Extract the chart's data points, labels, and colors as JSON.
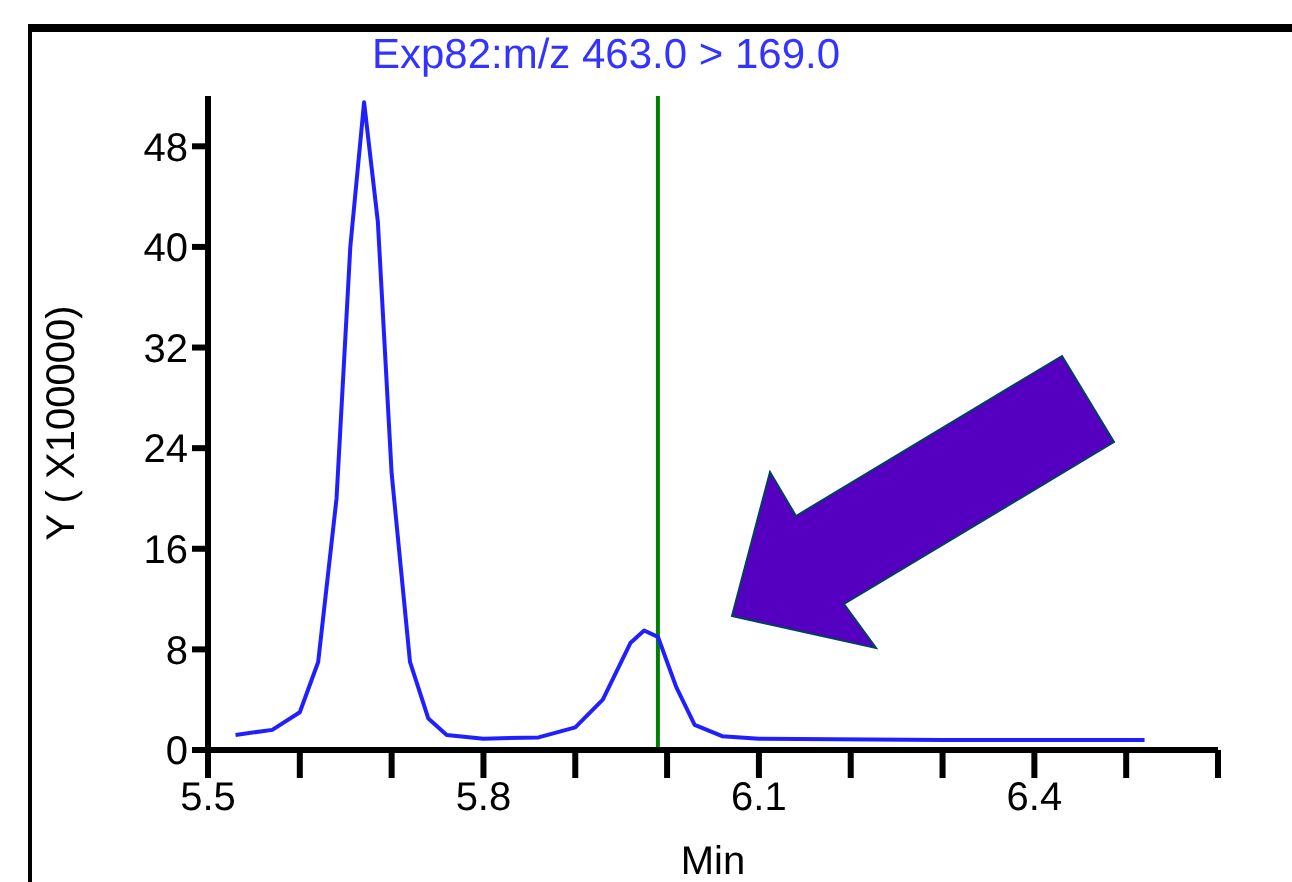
{
  "chart_data": {
    "type": "line",
    "title": "Exp82:m/z 463.0 > 169.0",
    "xlabel": "Min",
    "ylabel": "Y ( X100000)",
    "x": [
      5.53,
      5.57,
      5.6,
      5.62,
      5.64,
      5.655,
      5.67,
      5.685,
      5.7,
      5.72,
      5.74,
      5.76,
      5.8,
      5.86,
      5.9,
      5.93,
      5.96,
      5.975,
      5.99,
      6.01,
      6.03,
      6.06,
      6.1,
      6.3,
      6.52
    ],
    "series": [
      {
        "color": "#2020ff",
        "values": [
          1.2,
          1.6,
          3,
          7,
          20,
          40,
          51.5,
          42,
          22,
          7,
          2.5,
          1.2,
          0.9,
          1.0,
          1.8,
          4,
          8.5,
          9.5,
          9.0,
          5,
          2,
          1.1,
          0.9,
          0.8,
          0.8
        ]
      }
    ],
    "xlim": [
      5.5,
      6.6
    ],
    "xticks": [
      5.5,
      {
        "value": 5.6,
        "label": null
      },
      {
        "value": 5.7,
        "label": null
      },
      5.8,
      {
        "value": 5.9,
        "label": null
      },
      {
        "value": 6.0,
        "label": null
      },
      6.1,
      {
        "value": 6.2,
        "label": null
      },
      {
        "value": 6.3,
        "label": null
      },
      6.4,
      {
        "value": 6.5,
        "label": null
      },
      {
        "value": 6.6,
        "label": null
      }
    ],
    "ylim": [
      0,
      52
    ],
    "yticks": [
      0,
      8,
      16,
      24,
      32,
      40,
      48
    ],
    "ref_lines": [
      {
        "axis": "x",
        "value": 5.99,
        "color": "#008000"
      }
    ],
    "grid": false,
    "legend": false,
    "marker": "none",
    "line_style": "solid"
  }
}
